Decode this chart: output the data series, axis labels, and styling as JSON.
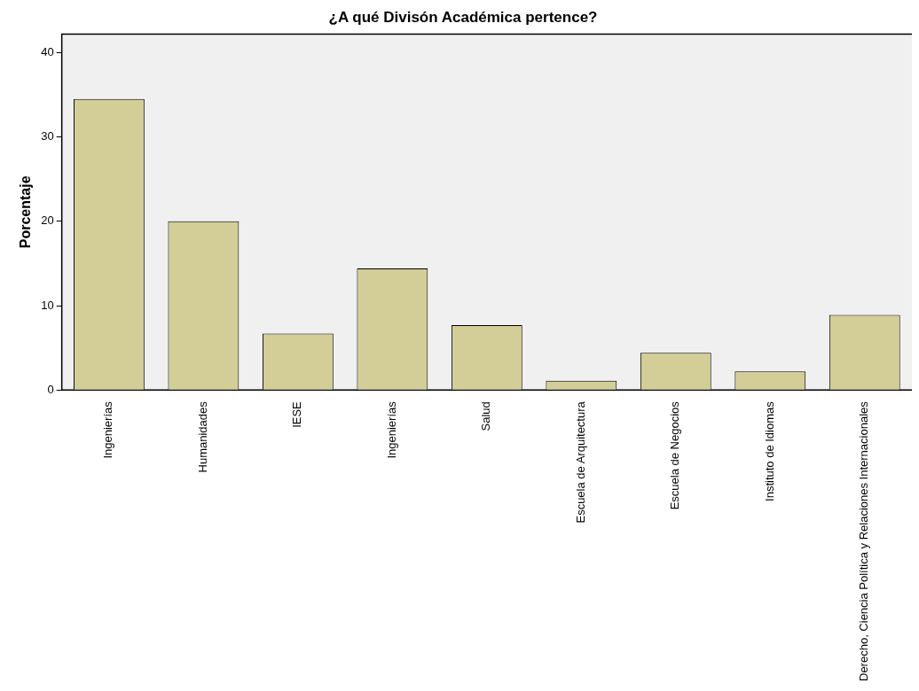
{
  "chart_data": {
    "type": "bar",
    "title": "¿A qué Divisón Académica pertence?",
    "ylabel": "Porcentaje",
    "categories": [
      "Ingenierías",
      "Humanidades",
      "IESE",
      "Ingenierías",
      "Salud",
      "Escuela de Arquitectura",
      "Escuela de Negocios",
      "Instituto de Idiomas",
      "Derecho, Ciencia Política y Relaciones Internacionales"
    ],
    "values": [
      34.5,
      20.0,
      6.7,
      14.4,
      7.7,
      1.1,
      4.4,
      2.2,
      8.9
    ],
    "color": "#d3ce97",
    "ylim": [
      0,
      42.2
    ],
    "yticks": [
      0,
      10,
      20,
      30,
      40
    ],
    "grid": false,
    "legend": false
  }
}
